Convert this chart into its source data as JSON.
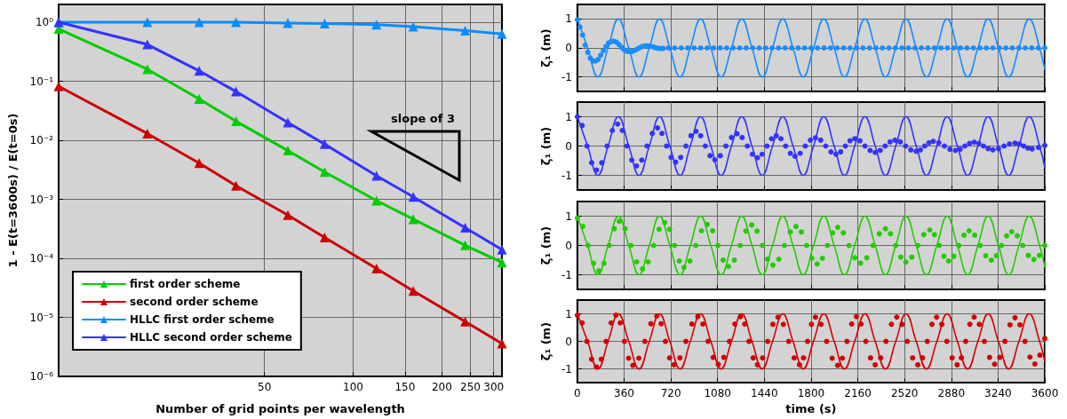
{
  "chart_data": [
    {
      "type": "line",
      "xlabel": "Number of grid points per wavelength",
      "ylabel": "1 - E(t=3600s) / E(t=0s)",
      "log": "xy",
      "xlim": [
        10,
        320
      ],
      "xticks": [
        50,
        100,
        150,
        200,
        250,
        300
      ],
      "ylim": [
        1e-06,
        2
      ],
      "yticks": [
        {
          "value": 1e-06,
          "label": "10⁻⁶"
        },
        {
          "value": 1e-05,
          "label": "10⁻⁵"
        },
        {
          "value": 0.0001,
          "label": "10⁻⁴"
        },
        {
          "value": 0.001,
          "label": "10⁻³"
        },
        {
          "value": 0.01,
          "label": "10⁻²"
        },
        {
          "value": 0.1,
          "label": "10⁻¹"
        },
        {
          "value": 1,
          "label": "10⁰"
        }
      ],
      "grid": true,
      "legend": "bottom left",
      "marker": "triangle",
      "line_style": "solid",
      "annotations": [
        "slope of 3"
      ],
      "x": [
        10,
        20,
        30,
        40,
        60,
        80,
        120,
        160,
        240,
        320
      ],
      "series": [
        {
          "name": "first order scheme",
          "color": "#00cc00",
          "values": [
            0.77,
            0.16,
            0.05,
            0.021,
            0.0067,
            0.0029,
            0.00095,
            0.00046,
            0.000166,
            8.5e-05
          ]
        },
        {
          "name": "second order scheme",
          "color": "#cc0000",
          "values": [
            0.082,
            0.013,
            0.0041,
            0.0017,
            0.00054,
            0.000225,
            6.7e-05,
            2.8e-05,
            8.5e-06,
            3.6e-06
          ]
        },
        {
          "name": "HLLC first order scheme",
          "color": "#0a8cff",
          "values": [
            1,
            1,
            1,
            1,
            0.97,
            0.95,
            0.91,
            0.84,
            0.72,
            0.63
          ]
        },
        {
          "name": "HLLC second order scheme",
          "color": "#3333ff",
          "values": [
            1,
            0.42,
            0.15,
            0.067,
            0.02,
            0.0086,
            0.0025,
            0.0011,
            0.00033,
            0.00014
          ]
        }
      ]
    },
    {
      "type": "line",
      "ylabel": "ζ₁ (m)",
      "xlim": [
        0,
        3600
      ],
      "xticks": [
        0,
        360,
        720,
        1080,
        1440,
        1800,
        2160,
        2520,
        2880,
        3240,
        3600
      ],
      "ylim": [
        -1.5,
        1.5
      ],
      "yticks": [
        -1,
        0,
        1
      ],
      "grid": true,
      "tick_labels": "y",
      "series": [
        {
          "color": "#1a8cff",
          "marker": "none",
          "x": [
            0,
            79,
            158,
            237,
            316,
            396,
            475,
            554,
            633,
            712,
            791,
            870,
            949,
            1028,
            1107,
            1187,
            1266,
            1345,
            1424,
            1503,
            1582,
            1661,
            1740,
            1819,
            1898,
            1978,
            2057,
            2136,
            2215,
            2294,
            2373,
            2452,
            2531,
            2610,
            2689,
            2769,
            2848,
            2927,
            3006,
            3085,
            3164,
            3243,
            3322,
            3401,
            3480,
            3560,
            3600
          ],
          "values": [
            1,
            0,
            -1,
            0,
            1,
            0,
            -1,
            0,
            1,
            0,
            -1,
            0,
            1,
            0,
            -1,
            0,
            1,
            0,
            -1,
            0,
            1,
            0,
            -1,
            0,
            1,
            0,
            -1,
            0,
            1,
            0,
            -1,
            0,
            1,
            0,
            -1,
            0,
            1,
            0,
            -1,
            0,
            1,
            0,
            -1,
            0,
            1,
            0,
            -0.73
          ]
        },
        {
          "type": "scatter",
          "color": "#1a8cff",
          "marker": "circle",
          "x": [
            0,
            20,
            40,
            60,
            80,
            100,
            120,
            140,
            160,
            180,
            200,
            220,
            240,
            260,
            280,
            300,
            320,
            340,
            360,
            380,
            400,
            420,
            440,
            460,
            480,
            500,
            520,
            540,
            560,
            580,
            600,
            620,
            640,
            660,
            700,
            750,
            800,
            850,
            900,
            950,
            1000,
            1050,
            1100,
            1150,
            1200,
            1250,
            1300,
            1350,
            1400,
            1450,
            1500,
            1550,
            1600,
            1650,
            1700,
            1750,
            1800,
            1850,
            1900,
            1950,
            2000,
            2050,
            2100,
            2150,
            2200,
            2250,
            2300,
            2350,
            2400,
            2450,
            2500,
            2550,
            2600,
            2650,
            2700,
            2750,
            2800,
            2850,
            2900,
            2950,
            3000,
            3050,
            3100,
            3150,
            3200,
            3250,
            3300,
            3350,
            3400,
            3450,
            3500,
            3550,
            3600
          ],
          "values": [
            0.97,
            0.72,
            0.45,
            0.1,
            -0.15,
            -0.35,
            -0.45,
            -0.45,
            -0.4,
            -0.25,
            -0.1,
            0.05,
            0.17,
            0.22,
            0.23,
            0.2,
            0.12,
            0.02,
            -0.06,
            -0.11,
            -0.13,
            -0.12,
            -0.09,
            -0.04,
            0.01,
            0.05,
            0.07,
            0.07,
            0.06,
            0.04,
            0.01,
            -0.01,
            -0.02,
            -0.02,
            0,
            0,
            0,
            0,
            0,
            0,
            0,
            0,
            0,
            0,
            0,
            0,
            0,
            0,
            0,
            0,
            0,
            0,
            0,
            0,
            0,
            0,
            0,
            0,
            0,
            0,
            0,
            0,
            0,
            0,
            0,
            0,
            0,
            0,
            0,
            0,
            0,
            0,
            0,
            0,
            0,
            0,
            0,
            0,
            0,
            0,
            0,
            0,
            0,
            0,
            0,
            0,
            0,
            0,
            0,
            0,
            0,
            0,
            0
          ]
        }
      ]
    },
    {
      "type": "line",
      "ylabel": "ζ₁ (m)",
      "xlim": [
        0,
        3600
      ],
      "xticks": [
        0,
        360,
        720,
        1080,
        1440,
        1800,
        2160,
        2520,
        2880,
        3240,
        3600
      ],
      "ylim": [
        -1.5,
        1.5
      ],
      "yticks": [
        -1,
        0,
        1
      ],
      "grid": true,
      "tick_labels": "y",
      "series": [
        {
          "color": "#3333ff",
          "marker": "none",
          "x": [
            0,
            79,
            158,
            237,
            316,
            396,
            475,
            554,
            633,
            712,
            791,
            870,
            949,
            1028,
            1107,
            1187,
            1266,
            1345,
            1424,
            1503,
            1582,
            1661,
            1740,
            1819,
            1898,
            1978,
            2057,
            2136,
            2215,
            2294,
            2373,
            2452,
            2531,
            2610,
            2689,
            2769,
            2848,
            2927,
            3006,
            3085,
            3164,
            3243,
            3322,
            3401,
            3480,
            3560,
            3600
          ],
          "values": [
            1,
            0,
            -1,
            0,
            1,
            0,
            -1,
            0,
            1,
            0,
            -1,
            0,
            1,
            0,
            -1,
            0,
            1,
            0,
            -1,
            0,
            1,
            0,
            -1,
            0,
            1,
            0,
            -1,
            0,
            1,
            0,
            -1,
            0,
            1,
            0,
            -1,
            0,
            1,
            0,
            -1,
            0,
            1,
            0,
            -1,
            0,
            1,
            0,
            -0.73
          ]
        },
        {
          "type": "scatter",
          "color": "#3333ff",
          "marker": "circle",
          "x": [
            0,
            37,
            74,
            110,
            147,
            188,
            229,
            269,
            310,
            346,
            383,
            419,
            455,
            496,
            536,
            577,
            617,
            652,
            687,
            722,
            757,
            796,
            836,
            875,
            914,
            950,
            986,
            1022,
            1058,
            1101,
            1144,
            1187,
            1230,
            1269,
            1309,
            1348,
            1387,
            1423,
            1460,
            1496,
            1532,
            1568,
            1604,
            1640,
            1676,
            1716,
            1755,
            1795,
            1834,
            1874,
            1913,
            1953,
            1992,
            2028,
            2064,
            2100,
            2136,
            2176,
            2215,
            2255,
            2294,
            2332,
            2370,
            2408,
            2446,
            2487,
            2528,
            2568,
            2609,
            2642,
            2675,
            2708,
            2741,
            2784,
            2827,
            2869,
            2912,
            2948,
            2984,
            3020,
            3056,
            3092,
            3128,
            3164,
            3200,
            3243,
            3286,
            3328,
            3371,
            3404,
            3437,
            3470,
            3503,
            3552,
            3600
          ],
          "values": [
            1,
            0.7,
            0,
            -0.57,
            -0.82,
            -0.57,
            0,
            0.53,
            0.75,
            0.53,
            0,
            -0.48,
            -0.68,
            -0.48,
            0,
            0.43,
            0.62,
            0.43,
            0,
            -0.39,
            -0.55,
            -0.39,
            0,
            0.35,
            0.5,
            0.35,
            0,
            -0.33,
            -0.47,
            -0.33,
            0,
            0.29,
            0.42,
            0.29,
            0,
            -0.28,
            -0.4,
            -0.28,
            0,
            0.25,
            0.35,
            0.25,
            0,
            -0.25,
            -0.35,
            -0.25,
            0,
            0.2,
            0.28,
            0.2,
            0,
            -0.2,
            -0.28,
            -0.2,
            0,
            0.18,
            0.25,
            0.18,
            0,
            -0.15,
            -0.22,
            -0.15,
            0,
            0.14,
            0.2,
            0.14,
            0,
            -0.13,
            -0.18,
            -0.13,
            0,
            0.11,
            0.16,
            0.11,
            0,
            -0.11,
            -0.15,
            -0.11,
            0,
            0.09,
            0.13,
            0.09,
            0,
            -0.09,
            -0.13,
            -0.09,
            0,
            0.07,
            0.1,
            0.07,
            0,
            -0.07,
            -0.1,
            -0.05,
            0.02
          ]
        }
      ]
    },
    {
      "type": "line",
      "ylabel": "ζ₁ (m)",
      "xlim": [
        0,
        3600
      ],
      "xticks": [
        0,
        360,
        720,
        1080,
        1440,
        1800,
        2160,
        2520,
        2880,
        3240,
        3600
      ],
      "ylim": [
        -1.5,
        1.5
      ],
      "yticks": [
        -1,
        0,
        1
      ],
      "grid": true,
      "tick_labels": "y",
      "series": [
        {
          "color": "#22cc00",
          "marker": "none",
          "x": [
            0,
            79,
            158,
            237,
            316,
            396,
            475,
            554,
            633,
            712,
            791,
            870,
            949,
            1028,
            1107,
            1187,
            1266,
            1345,
            1424,
            1503,
            1582,
            1661,
            1740,
            1819,
            1898,
            1978,
            2057,
            2136,
            2215,
            2294,
            2373,
            2452,
            2531,
            2610,
            2689,
            2769,
            2848,
            2927,
            3006,
            3085,
            3164,
            3243,
            3322,
            3401,
            3480,
            3560,
            3600
          ],
          "values": [
            1,
            0,
            -1,
            0,
            1,
            0,
            -1,
            0,
            1,
            0,
            -1,
            0,
            1,
            0,
            -1,
            0,
            1,
            0,
            -1,
            0,
            1,
            0,
            -1,
            0,
            1,
            0,
            -1,
            0,
            1,
            0,
            -1,
            0,
            1,
            0,
            -1,
            0,
            1,
            0,
            -1,
            0,
            1,
            0,
            -1,
            0,
            1,
            0,
            -0.73
          ]
        },
        {
          "type": "scatter",
          "color": "#22cc00",
          "marker": "circle",
          "x": [
            0,
            42,
            83,
            125,
            166,
            205,
            245,
            284,
            323,
            368,
            413,
            457,
            502,
            545,
            588,
            630,
            673,
            710,
            748,
            785,
            822,
            867,
            912,
            956,
            1001,
            1042,
            1083,
            1123,
            1164,
            1209,
            1254,
            1298,
            1343,
            1384,
            1425,
            1465,
            1506,
            1551,
            1595,
            1640,
            1684,
            1725,
            1766,
            1806,
            1847,
            1887,
            1926,
            1966,
            2005,
            2049,
            2093,
            2137,
            2181,
            2229,
            2277,
            2325,
            2373,
            2412,
            2452,
            2491,
            2530,
            2576,
            2622,
            2668,
            2714,
            2750,
            2787,
            2823,
            2859,
            2899,
            2938,
            2978,
            3017,
            3060,
            3103,
            3145,
            3188,
            3227,
            3267,
            3306,
            3345,
            3388,
            3431,
            3473,
            3516,
            3558,
            3600
          ],
          "values": [
            0.93,
            0.65,
            0,
            -0.61,
            -0.87,
            -0.61,
            0,
            0.57,
            0.82,
            0.57,
            0,
            -0.56,
            -0.8,
            -0.56,
            0,
            0.55,
            0.78,
            0.55,
            0,
            -0.53,
            -0.75,
            -0.53,
            0,
            0.5,
            0.72,
            0.5,
            0,
            -0.5,
            -0.72,
            -0.5,
            0,
            0.49,
            0.7,
            0.49,
            0,
            -0.47,
            -0.67,
            -0.47,
            0,
            0.46,
            0.65,
            0.46,
            0,
            -0.44,
            -0.63,
            -0.44,
            0,
            0.43,
            0.62,
            0.43,
            0,
            -0.42,
            -0.6,
            -0.42,
            0,
            0.4,
            0.57,
            0.4,
            0,
            -0.4,
            -0.57,
            -0.4,
            0,
            0.37,
            0.53,
            0.37,
            0,
            -0.37,
            -0.53,
            -0.37,
            0,
            0.35,
            0.5,
            0.35,
            0,
            -0.35,
            -0.5,
            -0.35,
            0,
            0.33,
            0.47,
            0.33,
            0,
            -0.34,
            -0.48,
            -0.34,
            0
          ]
        }
      ]
    },
    {
      "type": "line",
      "xlabel": "time (s)",
      "ylabel": "ζ₁ (m)",
      "xlim": [
        0,
        3600
      ],
      "xticks": [
        0,
        360,
        720,
        1080,
        1440,
        1800,
        2160,
        2520,
        2880,
        3240,
        3600
      ],
      "ylim": [
        -1.5,
        1.5
      ],
      "yticks": [
        -1,
        0,
        1
      ],
      "grid": true,
      "series": [
        {
          "color": "#d40000",
          "marker": "none",
          "x": [
            0,
            79,
            158,
            237,
            316,
            396,
            475,
            554,
            633,
            712,
            791,
            870,
            949,
            1028,
            1107,
            1187,
            1266,
            1345,
            1424,
            1503,
            1582,
            1661,
            1740,
            1819,
            1898,
            1978,
            2057,
            2136,
            2215,
            2294,
            2373,
            2452,
            2531,
            2610,
            2689,
            2769,
            2848,
            2927,
            3006,
            3085,
            3164,
            3243,
            3322,
            3401,
            3480,
            3560,
            3600
          ],
          "values": [
            1,
            0,
            -1,
            0,
            1,
            0,
            -1,
            0,
            1,
            0,
            -1,
            0,
            1,
            0,
            -1,
            0,
            1,
            0,
            -1,
            0,
            1,
            0,
            -1,
            0,
            1,
            0,
            -1,
            0,
            1,
            0,
            -1,
            0,
            1,
            0,
            -1,
            0,
            1,
            0,
            -1,
            0,
            1,
            0,
            -1,
            0,
            1,
            0,
            -0.73
          ]
        },
        {
          "type": "scatter",
          "color": "#d40000",
          "marker": "circle",
          "x": [
            0,
            37,
            74,
            110,
            147,
            185,
            222,
            260,
            297,
            330,
            363,
            395,
            428,
            474,
            520,
            566,
            612,
            645,
            678,
            711,
            744,
            790,
            836,
            882,
            928,
            967,
            1007,
            1046,
            1085,
            1128,
            1171,
            1213,
            1256,
            1289,
            1322,
            1354,
            1387,
            1427,
            1466,
            1506,
            1545,
            1587,
            1628,
            1670,
            1711,
            1742,
            1773,
            1803,
            1834,
            1877,
            1920,
            1962,
            2005,
            2041,
            2077,
            2113,
            2149,
            2185,
            2222,
            2258,
            2294,
            2336,
            2377,
            2419,
            2460,
            2501,
            2541,
            2582,
            2622,
            2658,
            2695,
            2731,
            2767,
            2807,
            2846,
            2886,
            2925,
            2958,
            2991,
            3023,
            3056,
            3096,
            3135,
            3175,
            3214,
            3253,
            3293,
            3332,
            3371,
            3409,
            3448,
            3486,
            3524,
            3562,
            3600
          ],
          "values": [
            0.95,
            0.67,
            0,
            -0.65,
            -0.93,
            -0.65,
            0,
            0.67,
            0.95,
            0.67,
            0,
            -0.61,
            -0.87,
            -0.61,
            0,
            0.64,
            0.92,
            0.64,
            0,
            -0.6,
            -0.85,
            -0.6,
            0,
            0.63,
            0.9,
            0.63,
            0,
            -0.58,
            -0.83,
            -0.58,
            0,
            0.63,
            0.9,
            0.63,
            0,
            -0.6,
            -0.85,
            -0.6,
            0,
            0.62,
            0.88,
            0.62,
            0,
            -0.6,
            -0.85,
            -0.6,
            0,
            0.62,
            0.88,
            0.62,
            0,
            -0.61,
            -0.87,
            -0.61,
            0,
            0.63,
            0.9,
            0.63,
            0,
            -0.6,
            -0.85,
            -0.6,
            0,
            0.62,
            0.88,
            0.62,
            0,
            -0.6,
            -0.85,
            -0.6,
            0,
            0.62,
            0.88,
            0.62,
            0,
            -0.6,
            -0.85,
            -0.6,
            0,
            0.62,
            0.88,
            0.62,
            0,
            -0.58,
            -0.83,
            -0.58,
            0,
            0.6,
            0.86,
            0.6,
            0,
            -0.57,
            -0.82,
            -0.5,
            0.1
          ]
        }
      ]
    }
  ]
}
